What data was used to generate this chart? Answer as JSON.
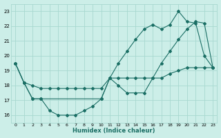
{
  "xlabel": "Humidex (Indice chaleur)",
  "bg_color": "#cceee8",
  "grid_color": "#a8d8d0",
  "line_color": "#1a6e64",
  "xlim": [
    -0.5,
    23.5
  ],
  "ylim": [
    15.5,
    23.5
  ],
  "xticks": [
    0,
    1,
    2,
    3,
    4,
    5,
    6,
    7,
    8,
    9,
    10,
    11,
    12,
    13,
    14,
    15,
    16,
    17,
    18,
    19,
    20,
    21,
    22,
    23
  ],
  "yticks": [
    16,
    17,
    18,
    19,
    20,
    21,
    22,
    23
  ],
  "line1_x": [
    0,
    1,
    2,
    3,
    4,
    5,
    6,
    7,
    8,
    9,
    10,
    11,
    12,
    13,
    14,
    15,
    16,
    17,
    18,
    19,
    20,
    21,
    22,
    23
  ],
  "line1_y": [
    19.5,
    18.2,
    18.0,
    17.8,
    17.8,
    17.8,
    17.8,
    17.8,
    17.8,
    17.8,
    17.8,
    18.5,
    18.5,
    18.5,
    18.5,
    18.5,
    18.5,
    18.5,
    18.8,
    19.0,
    19.2,
    19.2,
    19.2,
    19.2
  ],
  "line2_x": [
    0,
    1,
    2,
    3,
    4,
    5,
    6,
    7,
    8,
    9,
    10,
    11,
    12,
    13,
    14,
    15,
    16,
    17,
    18,
    19,
    20,
    21,
    22,
    23
  ],
  "line2_y": [
    19.5,
    18.2,
    17.1,
    17.1,
    16.3,
    16.0,
    16.0,
    16.0,
    16.3,
    16.6,
    17.1,
    18.5,
    18.0,
    17.5,
    17.5,
    17.5,
    18.5,
    19.5,
    20.3,
    21.1,
    21.8,
    22.3,
    22.2,
    19.2
  ],
  "line3_x": [
    0,
    1,
    2,
    3,
    10,
    11,
    12,
    13,
    14,
    15,
    16,
    17,
    18,
    19,
    20,
    21,
    22,
    23
  ],
  "line3_y": [
    19.5,
    18.2,
    17.1,
    17.1,
    17.1,
    18.5,
    19.5,
    20.3,
    21.1,
    21.8,
    22.1,
    21.8,
    22.1,
    23.0,
    22.3,
    22.2,
    20.0,
    19.2
  ]
}
